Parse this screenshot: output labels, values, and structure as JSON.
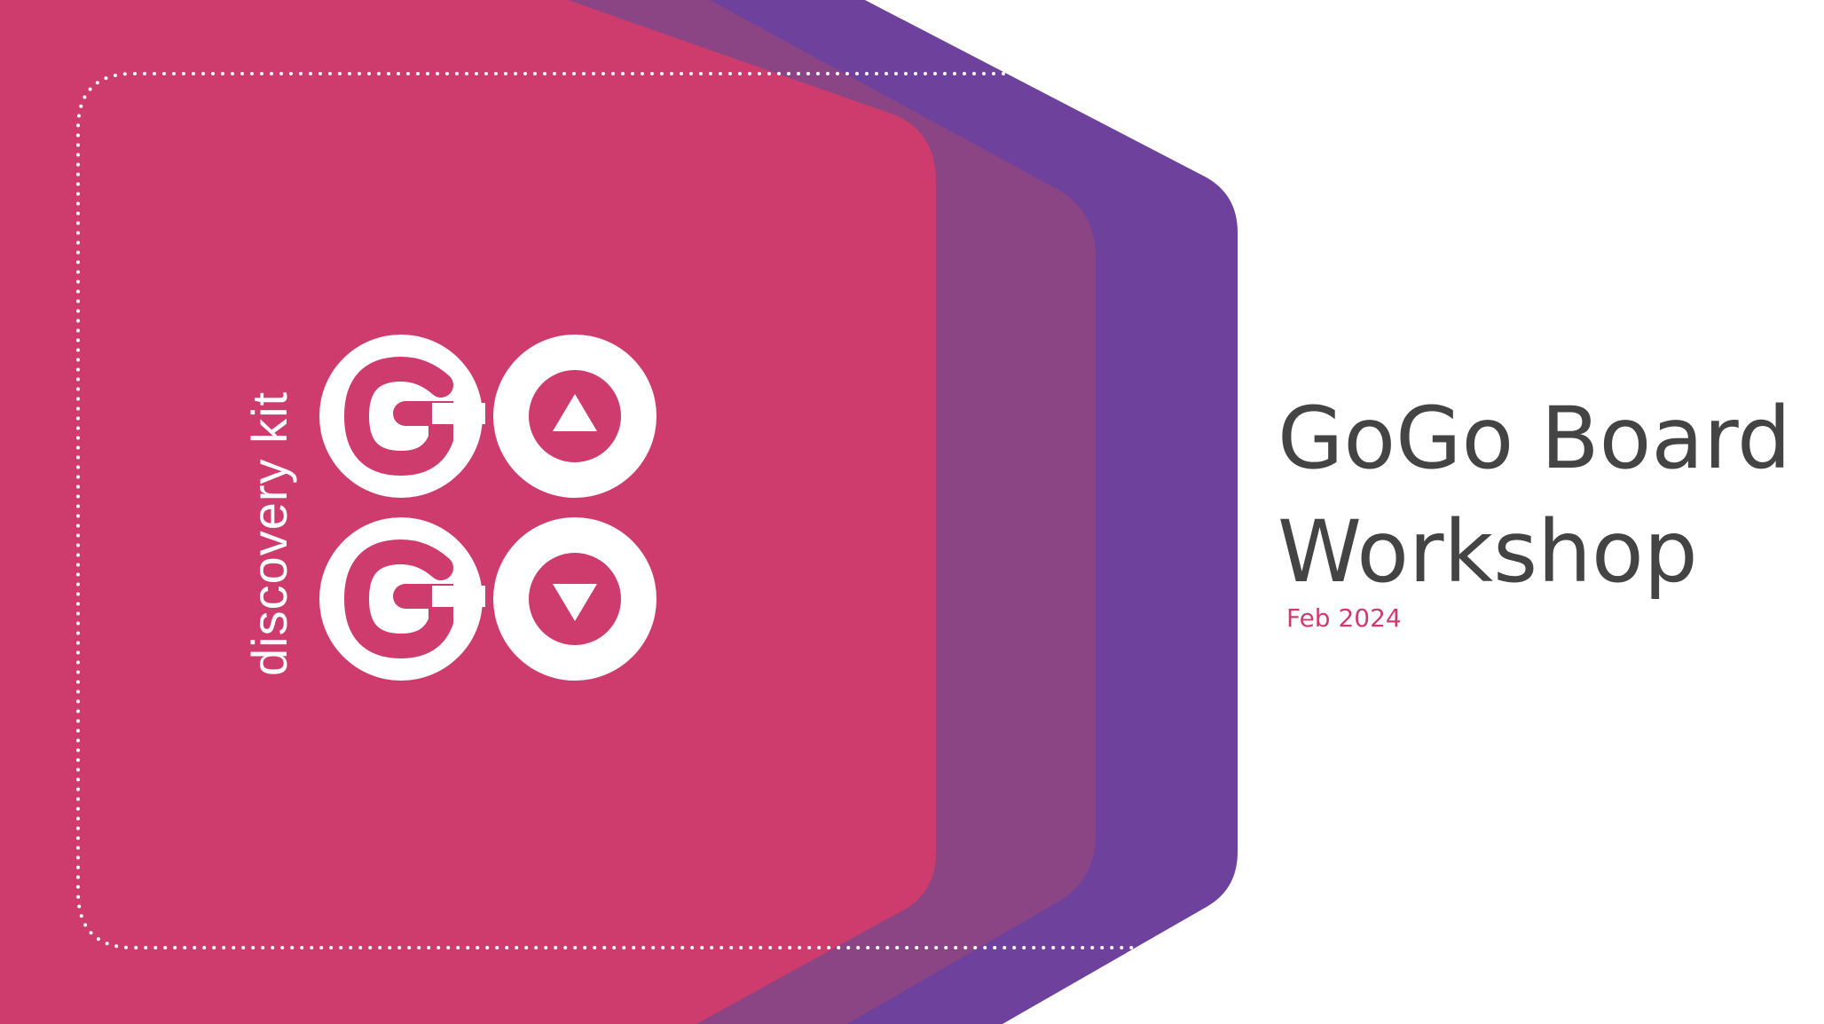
{
  "slide": {
    "logo": {
      "tagline": "discovery kit",
      "wordmark": "GO GO"
    },
    "title": {
      "line1": "GoGo Board",
      "line2": "Workshop"
    },
    "date": "Feb 2024"
  },
  "colors": {
    "pink": "#cd3c6c",
    "mauve": "#8c4584",
    "purple": "#6e419c",
    "title_text": "#444444",
    "date_text": "#cd3c6c",
    "logo": "#ffffff"
  },
  "icons": {
    "up_arrow": "triangle-up-icon",
    "down_arrow": "triangle-down-icon"
  }
}
